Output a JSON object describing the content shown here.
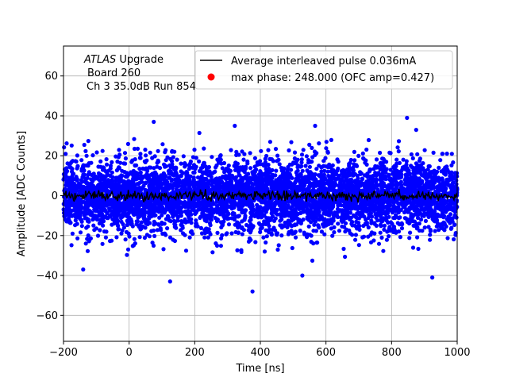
{
  "chart_data": {
    "type": "scatter",
    "title": "",
    "xlabel": "Time [ns]",
    "ylabel": "Amplitude [ADC Counts]",
    "xlim": [
      -200,
      1000
    ],
    "ylim": [
      -73,
      75
    ],
    "xticks": [
      -200,
      0,
      200,
      400,
      600,
      800,
      1000
    ],
    "yticks": [
      -60,
      -40,
      -20,
      0,
      20,
      40,
      60
    ],
    "grid": true,
    "legend_position": "top-right",
    "annotation": {
      "line1_italic": "ATLAS",
      "line1_rest": " Upgrade",
      "line2": "Board 260",
      "line3": "Ch 3 35.0dB  Run 854"
    },
    "series": [
      {
        "name": "Average interleaved pulse 0.036mA",
        "kind": "line",
        "color": "#000000",
        "x_range": [
          -200,
          1000
        ],
        "mean": 0,
        "spread": 1.2
      },
      {
        "name": "",
        "kind": "scatter",
        "color": "#0000ff",
        "x_range": [
          -200,
          1000
        ],
        "mean": 0,
        "core_spread": 9,
        "envelope": [
          -48,
          39
        ],
        "outliers": [
          {
            "x": 75,
            "y": 37
          },
          {
            "x": 138,
            "y": 22
          },
          {
            "x": 322,
            "y": 35
          },
          {
            "x": 567,
            "y": 35
          },
          {
            "x": 847,
            "y": 39
          },
          {
            "x": 875,
            "y": 33
          },
          {
            "x": 125,
            "y": -43
          },
          {
            "x": 376,
            "y": -48
          },
          {
            "x": 528,
            "y": -40
          },
          {
            "x": 924,
            "y": -41
          },
          {
            "x": -140,
            "y": -37
          }
        ]
      },
      {
        "name": "max phase: 248.000 (OFC amp=0.427)",
        "kind": "marker",
        "color": "#ff0000"
      }
    ]
  }
}
